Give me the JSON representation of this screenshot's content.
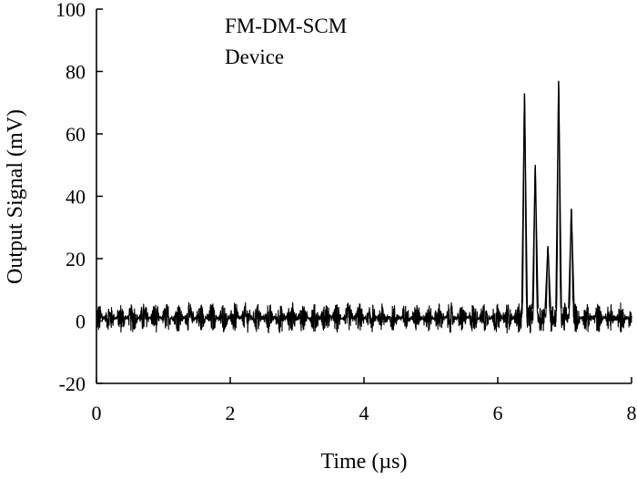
{
  "chart_data": {
    "type": "line",
    "xlabel": "Time (µs)",
    "ylabel": "Output Signal (mV)",
    "xlim": [
      0,
      8
    ],
    "ylim": [
      -20,
      100
    ],
    "xticks": [
      0,
      2,
      4,
      6,
      8
    ],
    "yticks": [
      -20,
      0,
      20,
      40,
      60,
      80,
      100
    ],
    "grid": false,
    "annotations": [
      "FM-DM-SCM",
      "Device"
    ],
    "series": [
      {
        "noise_band_mV": [
          -4,
          6
        ],
        "pulses": [
          {
            "t": 6.4,
            "peak": 73
          },
          {
            "t": 6.56,
            "peak": 50
          },
          {
            "t": 6.75,
            "peak": 24
          },
          {
            "t": 6.91,
            "peak": 77
          },
          {
            "t": 7.1,
            "peak": 36
          }
        ],
        "color": "#000000"
      }
    ]
  }
}
